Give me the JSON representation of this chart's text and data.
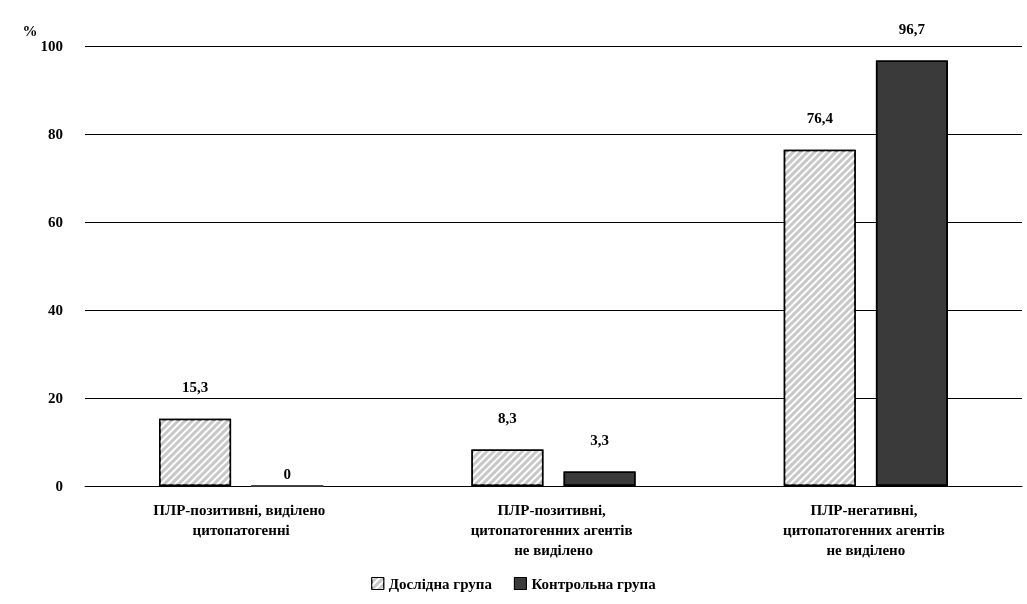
{
  "chart_data": {
    "type": "bar",
    "ylabel": "%",
    "categories": [
      "ПЛР-позитивні, виділено цитопатогенні",
      "ПЛР-позитивні, цитопатогенних агентів не виділено",
      "ПЛР-негативні, цитопатогенних агентів не виділено"
    ],
    "series": [
      {
        "name": "Дослідна група",
        "color": "#c8c8c8",
        "values": [
          15.3,
          8.3,
          76.4
        ],
        "value_labels": [
          "15,3",
          "8,3",
          "76,4"
        ]
      },
      {
        "name": "Контрольна група",
        "color": "#3a3a3a",
        "values": [
          0,
          3.3,
          96.7
        ],
        "value_labels": [
          "0",
          "3,3",
          "96,7"
        ]
      }
    ],
    "ylim": [
      0,
      100
    ],
    "yticks": [
      0,
      20,
      40,
      60,
      80,
      100
    ],
    "grid": "y",
    "legend": "bottom"
  }
}
